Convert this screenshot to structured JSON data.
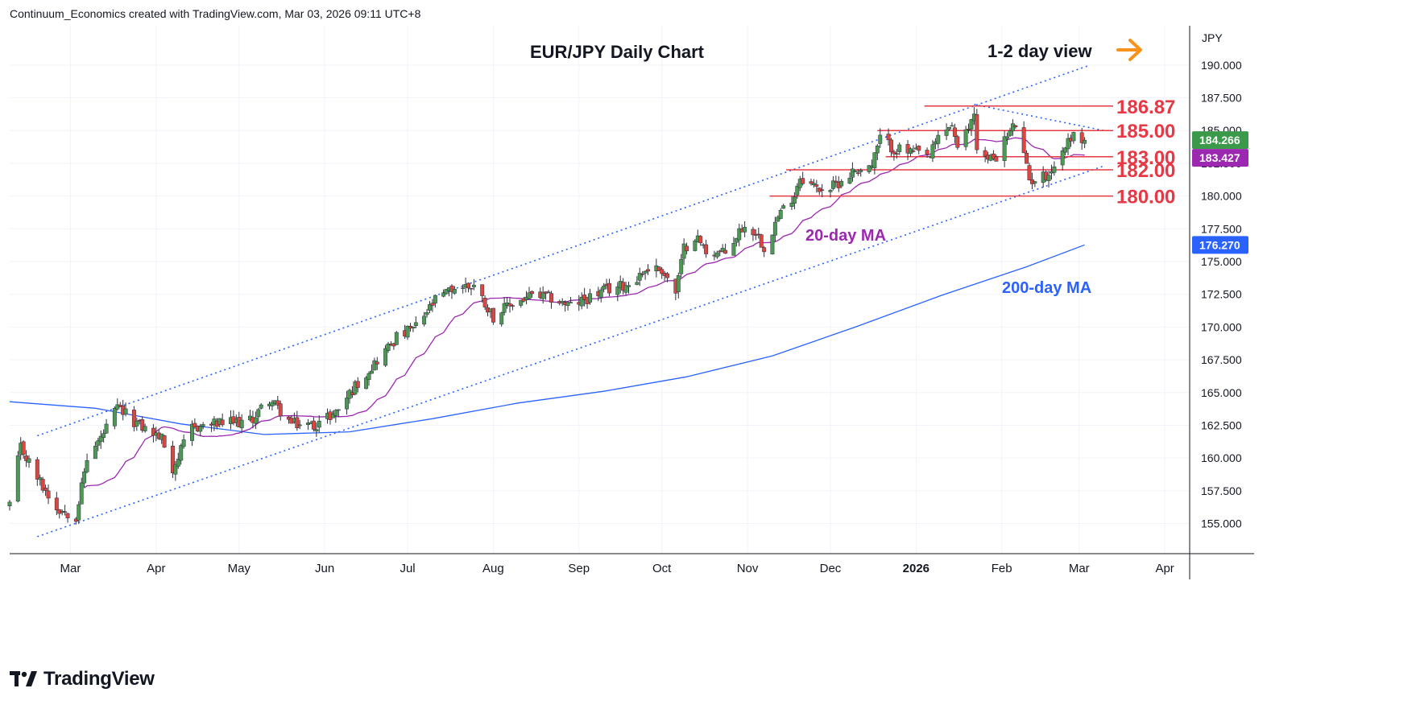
{
  "header": {
    "text": "Continuum_Economics created with TradingView.com, Mar 03, 2026 09:11 UTC+8"
  },
  "brand": {
    "name": "TradingView",
    "icon": "tradingview-logo-icon"
  },
  "chart_data": {
    "type": "candlestick",
    "title": "EUR/JPY Daily Chart",
    "annotation": "1-2 day view",
    "annotation_arrow_color": "#f7931a",
    "currency_label": "JPY",
    "ylim": [
      152.7,
      193.0
    ],
    "y_ticks": [
      155.0,
      157.5,
      160.0,
      162.5,
      165.0,
      167.5,
      170.0,
      172.5,
      175.0,
      177.5,
      180.0,
      182.5,
      185.0,
      187.5,
      190.0
    ],
    "y_tick_labels": [
      "155.000",
      "157.500",
      "160.000",
      "162.500",
      "165.000",
      "167.500",
      "170.000",
      "172.500",
      "175.000",
      "177.500",
      "180.000",
      "182.500",
      "185.000",
      "187.500",
      "190.000"
    ],
    "x_axis_labels": [
      "Mar",
      "Apr",
      "May",
      "Jun",
      "Jul",
      "Aug",
      "Sep",
      "Oct",
      "Nov",
      "Dec",
      "2026",
      "Feb",
      "Mar",
      "Apr"
    ],
    "x_axis_label_dates": [
      "2025-03-01",
      "2025-04-01",
      "2025-05-01",
      "2025-06-01",
      "2025-07-01",
      "2025-08-01",
      "2025-09-01",
      "2025-10-01",
      "2025-11-01",
      "2025-12-01",
      "2026-01-01",
      "2026-02-01",
      "2026-03-01",
      "2026-04-01"
    ],
    "x_range": [
      "2025-02-07",
      "2026-04-10"
    ],
    "price_path": [
      [
        "2025-02-07",
        156.5
      ],
      [
        "2025-02-11",
        160.8
      ],
      [
        "2025-02-17",
        158.5
      ],
      [
        "2025-02-24",
        156.2
      ],
      [
        "2025-03-03",
        155.6
      ],
      [
        "2025-03-07",
        160.0
      ],
      [
        "2025-03-12",
        161.5
      ],
      [
        "2025-03-18",
        163.8
      ],
      [
        "2025-03-26",
        162.5
      ],
      [
        "2025-04-03",
        161.5
      ],
      [
        "2025-04-07",
        159.2
      ],
      [
        "2025-04-14",
        162.3
      ],
      [
        "2025-04-22",
        162.6
      ],
      [
        "2025-05-05",
        162.8
      ],
      [
        "2025-05-12",
        164.5
      ],
      [
        "2025-05-20",
        162.6
      ],
      [
        "2025-05-28",
        162.5
      ],
      [
        "2025-06-05",
        163.5
      ],
      [
        "2025-06-12",
        165.5
      ],
      [
        "2025-06-20",
        167.5
      ],
      [
        "2025-06-27",
        169.2
      ],
      [
        "2025-07-04",
        170.0
      ],
      [
        "2025-07-11",
        172.0
      ],
      [
        "2025-07-18",
        173.0
      ],
      [
        "2025-07-25",
        173.2
      ],
      [
        "2025-08-01",
        170.8
      ],
      [
        "2025-08-08",
        171.8
      ],
      [
        "2025-08-15",
        172.4
      ],
      [
        "2025-08-22",
        172.2
      ],
      [
        "2025-08-29",
        171.6
      ],
      [
        "2025-09-05",
        172.3
      ],
      [
        "2025-09-12",
        172.9
      ],
      [
        "2025-09-19",
        173.3
      ],
      [
        "2025-09-26",
        174.5
      ],
      [
        "2025-10-01",
        174.4
      ],
      [
        "2025-10-06",
        172.6
      ],
      [
        "2025-10-09",
        176.0
      ],
      [
        "2025-10-13",
        177.0
      ],
      [
        "2025-10-17",
        175.8
      ],
      [
        "2025-10-24",
        175.6
      ],
      [
        "2025-10-30",
        177.6
      ],
      [
        "2025-11-04",
        177.3
      ],
      [
        "2025-11-07",
        176.1
      ],
      [
        "2025-11-12",
        178.4
      ],
      [
        "2025-11-18",
        180.2
      ],
      [
        "2025-11-20",
        181.5
      ],
      [
        "2025-11-26",
        180.6
      ],
      [
        "2025-12-01",
        180.6
      ],
      [
        "2025-12-05",
        181.2
      ],
      [
        "2025-12-10",
        182.0
      ],
      [
        "2025-12-16",
        182.3
      ],
      [
        "2025-12-19",
        184.4
      ],
      [
        "2025-12-24",
        183.6
      ],
      [
        "2025-12-31",
        183.3
      ],
      [
        "2026-01-06",
        183.0
      ],
      [
        "2026-01-09",
        184.5
      ],
      [
        "2026-01-14",
        185.5
      ],
      [
        "2026-01-16",
        183.4
      ],
      [
        "2026-01-20",
        185.2
      ],
      [
        "2026-01-22",
        186.4
      ],
      [
        "2026-01-23",
        183.8
      ],
      [
        "2026-01-27",
        182.7
      ],
      [
        "2026-01-30",
        183.1
      ],
      [
        "2026-02-03",
        184.6
      ],
      [
        "2026-02-06",
        185.5
      ],
      [
        "2026-02-09",
        183.0
      ],
      [
        "2026-02-11",
        181.2
      ],
      [
        "2026-02-13",
        181.3
      ],
      [
        "2026-02-17",
        181.6
      ],
      [
        "2026-02-20",
        182.3
      ],
      [
        "2026-02-24",
        183.8
      ],
      [
        "2026-02-26",
        184.6
      ],
      [
        "2026-03-03",
        184.266
      ]
    ],
    "last_price": 184.266,
    "levels": [
      {
        "label": "186.87",
        "value": 186.87,
        "from": "2026-01-04"
      },
      {
        "label": "185.00",
        "value": 185.0,
        "from": "2025-12-18"
      },
      {
        "label": "183.00",
        "value": 183.0,
        "from": "2025-12-21"
      },
      {
        "label": "182.00",
        "value": 182.0,
        "from": "2025-11-15"
      },
      {
        "label": "180.00",
        "value": 180.0,
        "from": "2025-11-09"
      }
    ],
    "channel_upper": [
      [
        "2025-02-17",
        161.7
      ],
      [
        "2026-03-05",
        190.0
      ]
    ],
    "channel_lower": [
      [
        "2025-02-17",
        154.0
      ],
      [
        "2026-03-10",
        182.3
      ]
    ],
    "resistance_line": [
      [
        "2026-01-22",
        187.0
      ],
      [
        "2026-03-10",
        185.0
      ]
    ],
    "sma20": {
      "name": "20-day MA",
      "color": "#9c27b0",
      "value": 183.427
    },
    "sma200": {
      "name": "200-day MA",
      "color": "#2962ff",
      "value": 176.27,
      "points": [
        [
          "2025-02-07",
          164.3
        ],
        [
          "2025-03-10",
          163.8
        ],
        [
          "2025-04-10",
          162.6
        ],
        [
          "2025-05-10",
          161.8
        ],
        [
          "2025-06-10",
          162.0
        ],
        [
          "2025-07-10",
          163.0
        ],
        [
          "2025-08-10",
          164.2
        ],
        [
          "2025-09-10",
          165.1
        ],
        [
          "2025-10-10",
          166.2
        ],
        [
          "2025-11-10",
          167.8
        ],
        [
          "2025-12-10",
          170.0
        ],
        [
          "2026-01-10",
          172.4
        ],
        [
          "2026-02-10",
          174.6
        ],
        [
          "2026-03-03",
          176.27
        ]
      ]
    },
    "price_badges": [
      {
        "label": "184.266",
        "value": 184.266,
        "color": "#3a9a4a"
      },
      {
        "label": "183.427",
        "value": 183.427,
        "color": "#9c27b0"
      },
      {
        "label": "176.270",
        "value": 176.27,
        "color": "#2962ff"
      }
    ],
    "colors": {
      "up": "#4c9a52",
      "down": "#e0443f",
      "level": "#e63946",
      "channel": "#2962ff",
      "grid": "#f0f3fa"
    },
    "grid": true
  }
}
